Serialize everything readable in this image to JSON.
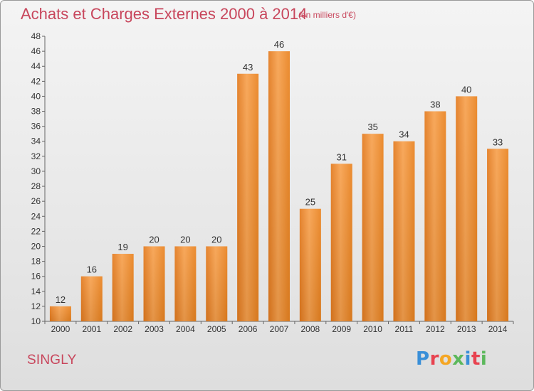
{
  "chart_data": {
    "type": "bar",
    "title": "Achats et Charges Externes 2000 à 2014",
    "subtitle": "(en milliers d'€)",
    "categories": [
      "2000",
      "2001",
      "2002",
      "2003",
      "2004",
      "2005",
      "2006",
      "2007",
      "2008",
      "2009",
      "2010",
      "2011",
      "2012",
      "2013",
      "2014"
    ],
    "values": [
      12,
      16,
      19,
      20,
      20,
      20,
      43,
      46,
      25,
      31,
      35,
      34,
      38,
      40,
      33
    ],
    "ylim": [
      10,
      48
    ],
    "yticks": [
      10,
      12,
      14,
      16,
      18,
      20,
      22,
      24,
      26,
      28,
      30,
      32,
      34,
      36,
      38,
      40,
      42,
      44,
      46,
      48
    ],
    "grid": false,
    "bar_color": "#f08a2c"
  },
  "commune": "SINGLY",
  "brand": {
    "letters": [
      "P",
      "r",
      "o",
      "x",
      "i",
      "t",
      "i"
    ],
    "colors": [
      "#3a8fd8",
      "#e8424f",
      "#f5a623",
      "#5cb85c",
      "#3a8fd8",
      "#e8424f",
      "#5cb85c"
    ]
  }
}
